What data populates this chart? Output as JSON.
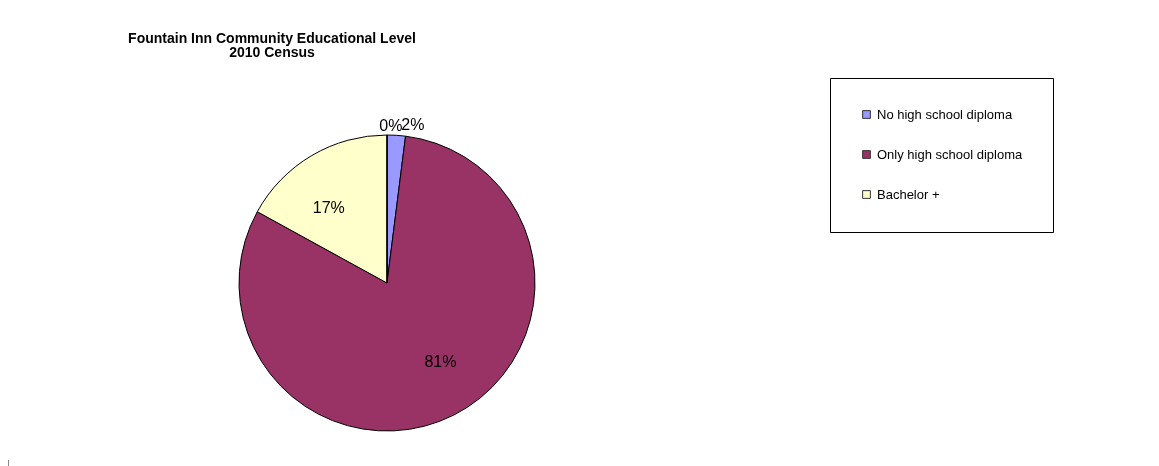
{
  "chart_data": {
    "type": "pie",
    "title": "Fountain Inn Community Educational Level",
    "subtitle": "2010 Census",
    "categories": [
      "No high school diploma",
      "Only high school diploma",
      "Bachelor  +",
      null
    ],
    "values": [
      2,
      81,
      17,
      0
    ],
    "colors": [
      "#9999ff",
      "#993366",
      "#ffffcc",
      "#ccffff"
    ],
    "value_labels": [
      "2%",
      "81%",
      "17%",
      "0%"
    ],
    "legend": "right"
  }
}
